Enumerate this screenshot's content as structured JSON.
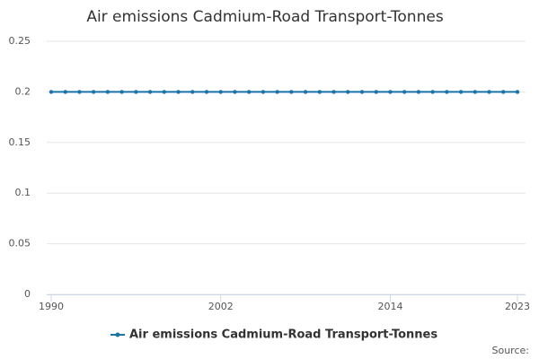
{
  "chart_data": {
    "type": "line",
    "title": "Air emissions Cadmium-Road Transport-Tonnes",
    "x": [
      1990,
      1991,
      1992,
      1993,
      1994,
      1995,
      1996,
      1997,
      1998,
      1999,
      2000,
      2001,
      2002,
      2003,
      2004,
      2005,
      2006,
      2007,
      2008,
      2009,
      2010,
      2011,
      2012,
      2013,
      2014,
      2015,
      2016,
      2017,
      2018,
      2019,
      2020,
      2021,
      2022,
      2023
    ],
    "series": [
      {
        "name": "Air emissions Cadmium-Road Transport-Tonnes",
        "color": "#1a74a8",
        "values": [
          0.2,
          0.2,
          0.2,
          0.2,
          0.2,
          0.2,
          0.2,
          0.2,
          0.2,
          0.2,
          0.2,
          0.2,
          0.2,
          0.2,
          0.2,
          0.2,
          0.2,
          0.2,
          0.2,
          0.2,
          0.2,
          0.2,
          0.2,
          0.2,
          0.2,
          0.2,
          0.2,
          0.2,
          0.2,
          0.2,
          0.2,
          0.2,
          0.2,
          0.2
        ]
      }
    ],
    "xlim": [
      1990,
      2023
    ],
    "xticks": [
      1990,
      2002,
      2014,
      2023
    ],
    "ylim": [
      0,
      0.25
    ],
    "yticks": [
      0,
      0.05,
      0.1,
      0.15,
      0.2,
      0.25
    ],
    "grid": true,
    "source": "Source:"
  }
}
